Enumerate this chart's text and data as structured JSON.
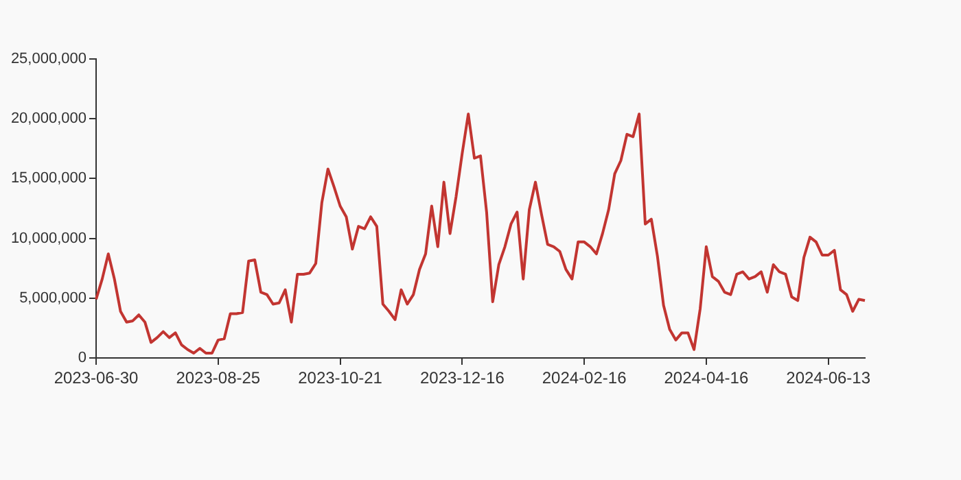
{
  "chart_data": {
    "type": "line",
    "categories": [
      "2023-06-30",
      null,
      null,
      null,
      null,
      null,
      null,
      null,
      null,
      null,
      null,
      null,
      null,
      null,
      null,
      null,
      null,
      null,
      null,
      null,
      "2023-08-25",
      null,
      null,
      null,
      null,
      null,
      null,
      null,
      null,
      null,
      null,
      null,
      null,
      null,
      null,
      null,
      null,
      null,
      null,
      null,
      "2023-10-21",
      null,
      null,
      null,
      null,
      null,
      null,
      null,
      null,
      null,
      null,
      null,
      null,
      null,
      null,
      null,
      null,
      null,
      null,
      null,
      "2023-12-16",
      null,
      null,
      null,
      null,
      null,
      null,
      null,
      null,
      null,
      null,
      null,
      null,
      null,
      null,
      null,
      null,
      null,
      null,
      null,
      "2024-02-16",
      null,
      null,
      null,
      null,
      null,
      null,
      null,
      null,
      null,
      null,
      null,
      null,
      null,
      null,
      null,
      null,
      null,
      null,
      null,
      "2024-04-16",
      null,
      null,
      null,
      null,
      null,
      null,
      null,
      null,
      null,
      null,
      null,
      null,
      null,
      null,
      null,
      null,
      null,
      null,
      null,
      "2024-06-13",
      null,
      null,
      null,
      null,
      null,
      null
    ],
    "series": [
      {
        "color": "#c23531",
        "values": [
          4900000,
          6600000,
          8700000,
          6600000,
          3900000,
          3000000,
          3100000,
          3600000,
          3000000,
          1300000,
          1700000,
          2200000,
          1700000,
          2100000,
          1100000,
          700000,
          400000,
          800000,
          400000,
          400000,
          1500000,
          1600000,
          3700000,
          3700000,
          3800000,
          8100000,
          8200000,
          5500000,
          5300000,
          4500000,
          4600000,
          5700000,
          3000000,
          7000000,
          7000000,
          7100000,
          7900000,
          13000000,
          15800000,
          14300000,
          12700000,
          11800000,
          9100000,
          11000000,
          10800000,
          11800000,
          11000000,
          4500000,
          3900000,
          3200000,
          5700000,
          4500000,
          5300000,
          7400000,
          8700000,
          12700000,
          9300000,
          14700000,
          10400000,
          13500000,
          17100000,
          20400000,
          16700000,
          16900000,
          12200000,
          4700000,
          7800000,
          9300000,
          11200000,
          12200000,
          6600000,
          12400000,
          14700000,
          12000000,
          9500000,
          9300000,
          8900000,
          7400000,
          6600000,
          9700000,
          9700000,
          9300000,
          8700000,
          10400000,
          12400000,
          15400000,
          16500000,
          18700000,
          18500000,
          20400000,
          11200000,
          11600000,
          8500000,
          4400000,
          2400000,
          1500000,
          2100000,
          2100000,
          700000,
          4100000,
          9300000,
          6800000,
          6400000,
          5500000,
          5300000,
          7000000,
          7200000,
          6600000,
          6800000,
          7200000,
          5500000,
          7800000,
          7200000,
          7000000,
          5100000,
          4800000,
          8400000,
          10100000,
          9700000,
          8600000,
          8600000,
          9000000,
          5700000,
          5300000,
          3900000,
          4900000,
          4800000
        ]
      }
    ],
    "ylim": [
      0,
      25000000
    ],
    "yticks": [
      0,
      {
        "value": 5000000,
        "label": "5,000,000"
      },
      {
        "value": 10000000,
        "label": "10,000,000"
      },
      {
        "value": 15000000,
        "label": "15,000,000"
      },
      {
        "value": 20000000,
        "label": "20,000,000"
      },
      {
        "value": 25000000,
        "label": "25,000,000"
      }
    ],
    "grid": false,
    "legend": false,
    "marker": "none",
    "line_style": "solid"
  }
}
